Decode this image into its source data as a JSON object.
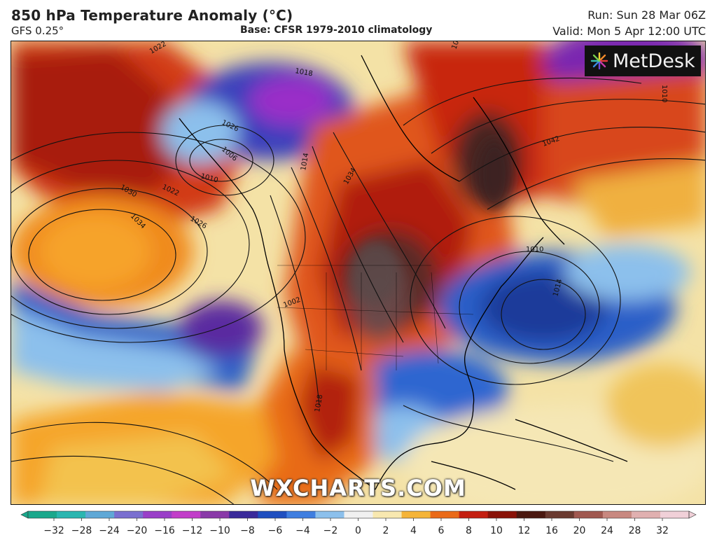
{
  "header": {
    "title": "850 hPa Temperature Anomaly (°C)",
    "model": "GFS 0.25°",
    "base": "Base: CFSR 1979-2010 climatology",
    "run": "Run: Sun 28 Mar 06Z",
    "valid": "Valid: Mon 5 Apr 12:00 UTC"
  },
  "brand": {
    "logo_text": "MetDesk",
    "watermark": "WXCHARTS.COM"
  },
  "map": {
    "region": "North America and North Atlantic",
    "isobar_labels": [
      "1022",
      "1018",
      "1026",
      "1010",
      "1006",
      "1030",
      "1022",
      "1026",
      "1034",
      "1014",
      "1034",
      "1042",
      "1046",
      "1010",
      "1014",
      "1002",
      "1018",
      "1010"
    ]
  },
  "colorbar": {
    "ticks": [
      "−32",
      "−28",
      "−24",
      "−20",
      "−16",
      "−12",
      "−10",
      "−8",
      "−6",
      "−4",
      "−2",
      "0",
      "2",
      "4",
      "6",
      "8",
      "10",
      "12",
      "16",
      "20",
      "24",
      "28",
      "32"
    ],
    "colors": [
      "#1aa88c",
      "#2ab6b0",
      "#5fa8d6",
      "#7a6fd0",
      "#9a3fc8",
      "#c23ec9",
      "#8a3aa8",
      "#3a2a9a",
      "#1f4fc0",
      "#3f7ee0",
      "#8cc0ec",
      "#f0f0f0",
      "#f8e8b0",
      "#f5b438",
      "#ea6a18",
      "#c41e10",
      "#8a1208",
      "#4a1810",
      "#6a3a30",
      "#a05850",
      "#c88880",
      "#e0b0b0",
      "#f0d0d8"
    ]
  }
}
